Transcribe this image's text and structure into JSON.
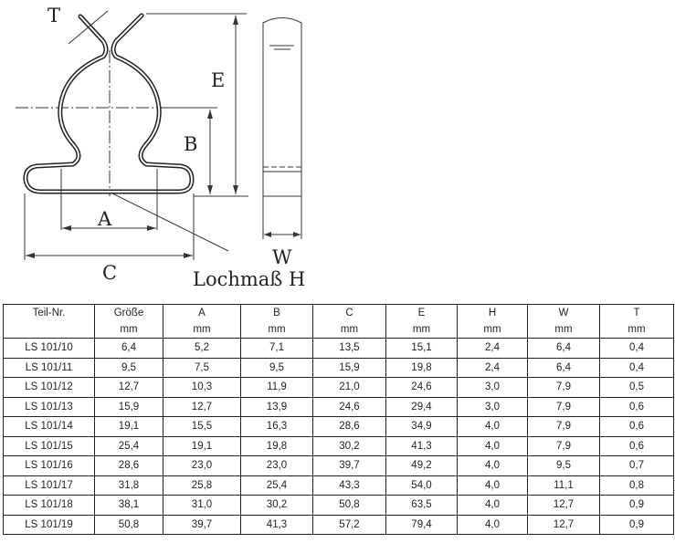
{
  "drawing": {
    "labels": {
      "T": "T",
      "E": "E",
      "B": "B",
      "A": "A",
      "C": "C",
      "W": "W",
      "hole": "Lochmaß H"
    }
  },
  "table": {
    "headers": [
      {
        "name": "Teil-Nr.",
        "unit": ""
      },
      {
        "name": "Größe",
        "unit": "mm"
      },
      {
        "name": "A",
        "unit": "mm"
      },
      {
        "name": "B",
        "unit": "mm"
      },
      {
        "name": "C",
        "unit": "mm"
      },
      {
        "name": "E",
        "unit": "mm"
      },
      {
        "name": "H",
        "unit": "mm"
      },
      {
        "name": "W",
        "unit": "mm"
      },
      {
        "name": "T",
        "unit": "mm"
      }
    ],
    "rows": [
      [
        "LS 101/10",
        "6,4",
        "5,2",
        "7,1",
        "13,5",
        "15,1",
        "2,4",
        "6,4",
        "0,4"
      ],
      [
        "LS 101/11",
        "9,5",
        "7,5",
        "9,5",
        "15,9",
        "19,8",
        "2,4",
        "6,4",
        "0,4"
      ],
      [
        "LS 101/12",
        "12,7",
        "10,3",
        "11,9",
        "21,0",
        "24,6",
        "3,0",
        "7,9",
        "0,5"
      ],
      [
        "LS 101/13",
        "15,9",
        "12,7",
        "13,9",
        "24,6",
        "29,4",
        "3,0",
        "7,9",
        "0,6"
      ],
      [
        "LS 101/14",
        "19,1",
        "15,5",
        "16,3",
        "28,6",
        "34,9",
        "4,0",
        "7,9",
        "0,6"
      ],
      [
        "LS 101/15",
        "25,4",
        "19,1",
        "19,8",
        "30,2",
        "41,3",
        "4,0",
        "7,9",
        "0,6"
      ],
      [
        "LS 101/16",
        "28,6",
        "23,0",
        "23,0",
        "39,7",
        "49,2",
        "4,0",
        "9,5",
        "0,7"
      ],
      [
        "LS 101/17",
        "31,8",
        "25,8",
        "25,4",
        "43,3",
        "54,0",
        "4,0",
        "11,1",
        "0,8"
      ],
      [
        "LS 101/18",
        "38,1",
        "31,0",
        "30,2",
        "50,8",
        "63,5",
        "4,0",
        "12,7",
        "0,9"
      ],
      [
        "LS 101/19",
        "50,8",
        "39,7",
        "41,3",
        "57,2",
        "79,4",
        "4,0",
        "12,7",
        "0,9"
      ]
    ]
  }
}
